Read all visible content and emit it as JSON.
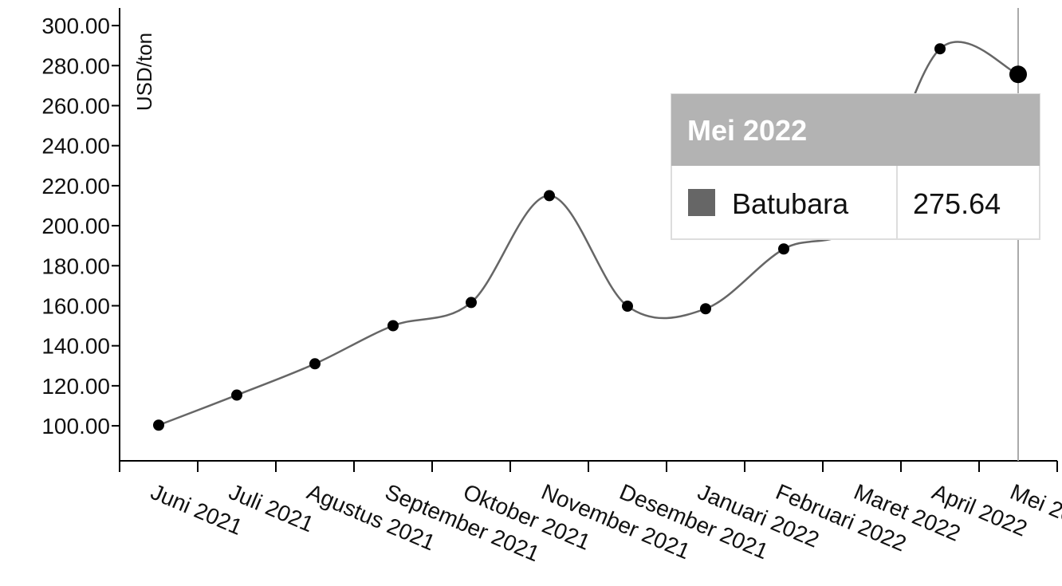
{
  "chart_data": {
    "type": "line",
    "y_label": "USD/ton",
    "categories": [
      "Juni 2021",
      "Juli 2021",
      "Agustus 2021",
      "September 2021",
      "Oktober 2021",
      "November 2021",
      "Desember 2021",
      "Januari 2022",
      "Februari 2022",
      "Maret 2022",
      "April 2022",
      "Mei 2022"
    ],
    "series": [
      {
        "name": "Batubara",
        "color": "#666666",
        "values": [
          100.33,
          115.35,
          130.99,
          150.03,
          161.63,
          215.01,
          159.79,
          158.5,
          188.38,
          203.69,
          288.4,
          275.64
        ]
      }
    ],
    "ylim": [
      82.5,
      308.8
    ],
    "yticks": [
      {
        "value": 100,
        "label": "100.00"
      },
      {
        "value": 120,
        "label": "120.00"
      },
      {
        "value": 140,
        "label": "140.00"
      },
      {
        "value": 160,
        "label": "160.00"
      },
      {
        "value": 180,
        "label": "180.00"
      },
      {
        "value": 200,
        "label": "200.00"
      },
      {
        "value": 220,
        "label": "220.00"
      },
      {
        "value": 240,
        "label": "240.00"
      },
      {
        "value": 260,
        "label": "260.00"
      },
      {
        "value": 280,
        "label": "280.00"
      },
      {
        "value": 300,
        "label": "300.00"
      }
    ],
    "tooltip_index": 11
  }
}
